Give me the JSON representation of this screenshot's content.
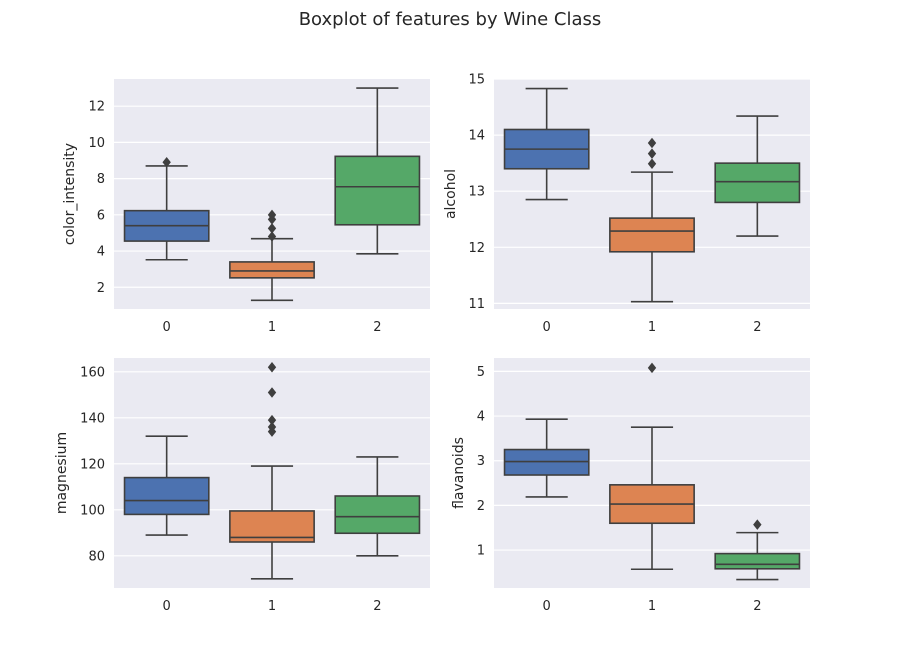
{
  "figure": {
    "title": "Boxplot of features by Wine Class"
  },
  "style": {
    "panel_bg": "#eaeaf2",
    "grid": "#ffffff",
    "line": "#3f3f3f",
    "class_colors": [
      "#4c72b0",
      "#dd8452",
      "#55a868"
    ]
  },
  "chart_data": [
    {
      "type": "box",
      "ylabel": "color_intensity",
      "categories": [
        "0",
        "1",
        "2"
      ],
      "ylim": [
        0.8,
        13.5
      ],
      "yticks": [
        2,
        4,
        6,
        8,
        10,
        12
      ],
      "boxes": [
        {
          "whislo": 3.52,
          "q1": 4.55,
          "med": 5.4,
          "q3": 6.23,
          "whishi": 8.7,
          "fliers": [
            8.9
          ]
        },
        {
          "whislo": 1.28,
          "q1": 2.52,
          "med": 2.9,
          "q3": 3.4,
          "whishi": 4.68,
          "fliers": [
            4.8,
            5.25,
            5.75,
            6.0
          ]
        },
        {
          "whislo": 3.85,
          "q1": 5.45,
          "med": 7.55,
          "q3": 9.23,
          "whishi": 13.0,
          "fliers": []
        }
      ]
    },
    {
      "type": "box",
      "ylabel": "alcohol",
      "categories": [
        "0",
        "1",
        "2"
      ],
      "ylim": [
        10.9,
        15.0
      ],
      "yticks": [
        11,
        12,
        13,
        14,
        15
      ],
      "boxes": [
        {
          "whislo": 12.85,
          "q1": 13.4,
          "med": 13.75,
          "q3": 14.1,
          "whishi": 14.83,
          "fliers": []
        },
        {
          "whislo": 11.03,
          "q1": 11.92,
          "med": 12.29,
          "q3": 12.52,
          "whishi": 13.34,
          "fliers": [
            13.49,
            13.67,
            13.86
          ]
        },
        {
          "whislo": 12.2,
          "q1": 12.8,
          "med": 13.17,
          "q3": 13.5,
          "whishi": 14.34,
          "fliers": []
        }
      ]
    },
    {
      "type": "box",
      "ylabel": "magnesium",
      "categories": [
        "0",
        "1",
        "2"
      ],
      "ylim": [
        66,
        166
      ],
      "yticks": [
        80,
        100,
        120,
        140,
        160
      ],
      "boxes": [
        {
          "whislo": 89,
          "q1": 98,
          "med": 104,
          "q3": 114,
          "whishi": 132,
          "fliers": []
        },
        {
          "whislo": 70,
          "q1": 86,
          "med": 88,
          "q3": 99.5,
          "whishi": 119,
          "fliers": [
            134,
            136,
            139,
            151,
            162
          ]
        },
        {
          "whislo": 80,
          "q1": 89.8,
          "med": 97,
          "q3": 106,
          "whishi": 123,
          "fliers": []
        }
      ]
    },
    {
      "type": "box",
      "ylabel": "flavanoids",
      "categories": [
        "0",
        "1",
        "2"
      ],
      "ylim": [
        0.15,
        5.3
      ],
      "yticks": [
        1,
        2,
        3,
        4,
        5
      ],
      "boxes": [
        {
          "whislo": 2.19,
          "q1": 2.68,
          "med": 2.98,
          "q3": 3.25,
          "whishi": 3.93,
          "fliers": []
        },
        {
          "whislo": 0.57,
          "q1": 1.6,
          "med": 2.03,
          "q3": 2.46,
          "whishi": 3.75,
          "fliers": [
            5.08
          ]
        },
        {
          "whislo": 0.34,
          "q1": 0.58,
          "med": 0.68,
          "q3": 0.92,
          "whishi": 1.39,
          "fliers": [
            1.57
          ]
        }
      ]
    }
  ]
}
